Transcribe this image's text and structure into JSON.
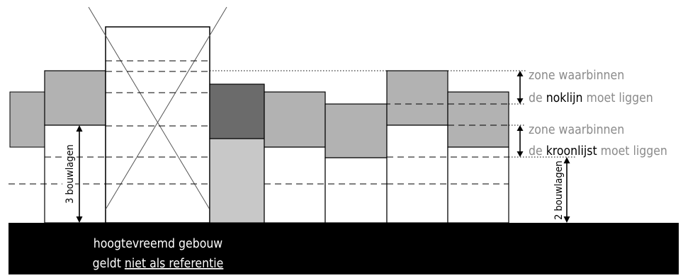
{
  "zones": {
    "ridge": {
      "line1": "zone waarbinnen",
      "line2_pre": "de ",
      "line2_key": "noklijn",
      "line2_post": " moet liggen"
    },
    "eaves": {
      "line1": "zone waarbinnen",
      "line2_pre": "de ",
      "line2_key": "kroonlijst",
      "line2_post": " moet liggen"
    }
  },
  "dimensions": {
    "left": "3 bouwlagen",
    "right": "2 bouwlagen"
  },
  "caption": {
    "line1": "hoogtevreemd gebouw",
    "line2_pre": "geldt ",
    "line2_link": "niet als referentie"
  },
  "colors": {
    "ground": "#000000",
    "roof_gray": "#b2b2b2",
    "highlight_dark": "#6b6b6b",
    "highlight_light": "#c8c8c8",
    "zone_text": "#8a8a8a",
    "key_text": "#000000"
  }
}
